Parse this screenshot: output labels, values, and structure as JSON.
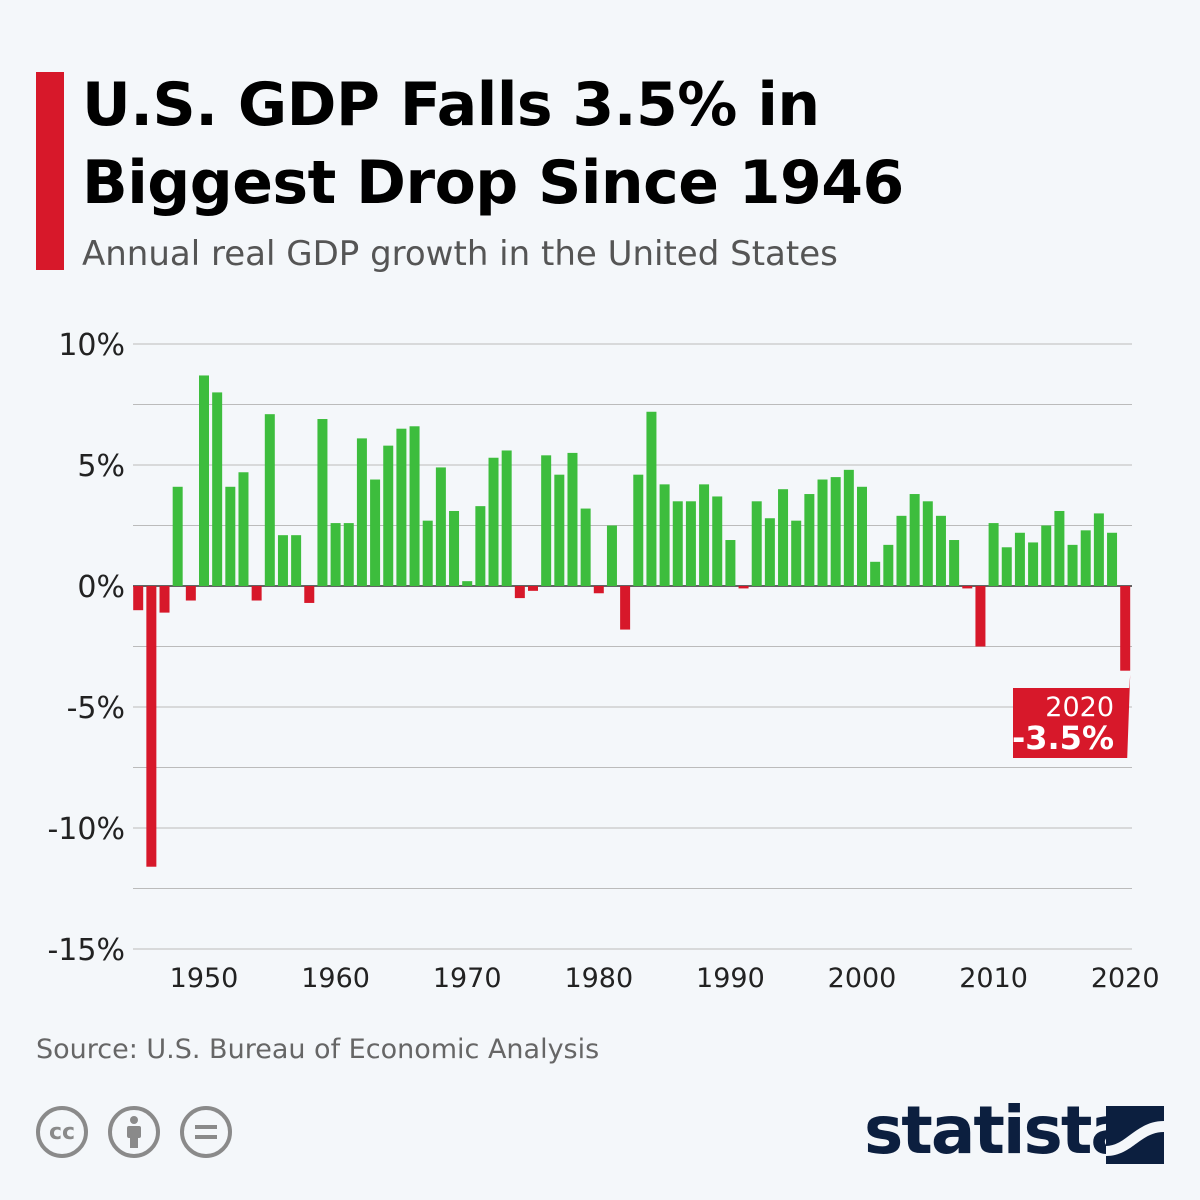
{
  "header": {
    "title_line1": "U.S. GDP Falls 3.5% in",
    "title_line2": "Biggest Drop Since 1946",
    "subtitle": "Annual real GDP growth in the United States"
  },
  "footer": {
    "source": "Source: U.S. Bureau of Economic Analysis",
    "brand": "statista",
    "license_icons": [
      "cc-icon",
      "attribution-icon",
      "no-derivatives-icon"
    ]
  },
  "colors": {
    "positive": "#3dbd3d",
    "negative": "#d7182a",
    "accent": "#d7182a",
    "brand": "#0c1f3f"
  },
  "chart_data": {
    "type": "bar",
    "title": "U.S. GDP Falls 3.5% in Biggest Drop Since 1946",
    "subtitle": "Annual real GDP growth in the United States",
    "ylim": [
      -15,
      10
    ],
    "yticks": [
      10,
      5,
      0,
      -5,
      -10,
      -15
    ],
    "ytick_labels": [
      "10%",
      "5%",
      "0%",
      "-5%",
      "-10%",
      "-15%"
    ],
    "xtick_labels": [
      "1950",
      "1960",
      "1970",
      "1980",
      "1990",
      "2000",
      "2010",
      "2020"
    ],
    "grid": true,
    "x": [
      1945,
      1946,
      1947,
      1948,
      1949,
      1950,
      1951,
      1952,
      1953,
      1954,
      1955,
      1956,
      1957,
      1958,
      1959,
      1960,
      1961,
      1962,
      1963,
      1964,
      1965,
      1966,
      1967,
      1968,
      1969,
      1970,
      1971,
      1972,
      1973,
      1974,
      1975,
      1976,
      1977,
      1978,
      1979,
      1980,
      1981,
      1982,
      1983,
      1984,
      1985,
      1986,
      1987,
      1988,
      1989,
      1990,
      1991,
      1992,
      1993,
      1994,
      1995,
      1996,
      1997,
      1998,
      1999,
      2000,
      2001,
      2002,
      2003,
      2004,
      2005,
      2006,
      2007,
      2008,
      2009,
      2010,
      2011,
      2012,
      2013,
      2014,
      2015,
      2016,
      2017,
      2018,
      2019,
      2020
    ],
    "values": [
      -1.0,
      -11.6,
      -1.1,
      4.1,
      -0.6,
      8.7,
      8.0,
      4.1,
      4.7,
      -0.6,
      7.1,
      2.1,
      2.1,
      -0.7,
      6.9,
      2.6,
      2.6,
      6.1,
      4.4,
      5.8,
      6.5,
      6.6,
      2.7,
      4.9,
      3.1,
      0.2,
      3.3,
      5.3,
      5.6,
      -0.5,
      -0.2,
      5.4,
      4.6,
      5.5,
      3.2,
      -0.3,
      2.5,
      -1.8,
      4.6,
      7.2,
      4.2,
      3.5,
      3.5,
      4.2,
      3.7,
      1.9,
      -0.1,
      3.5,
      2.8,
      4.0,
      2.7,
      3.8,
      4.4,
      4.5,
      4.8,
      4.1,
      1.0,
      1.7,
      2.9,
      3.8,
      3.5,
      2.9,
      1.9,
      -0.1,
      -2.5,
      2.6,
      1.6,
      2.2,
      1.8,
      2.5,
      3.1,
      1.7,
      2.3,
      3.0,
      2.2,
      -3.5
    ],
    "annotation": {
      "year": "2020",
      "value": "-3.5%"
    }
  }
}
